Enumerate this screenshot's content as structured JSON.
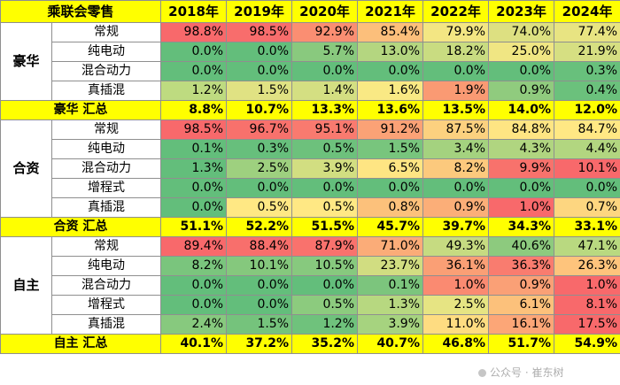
{
  "title": "乘联会零售",
  "years": [
    "2018年",
    "2019年",
    "2020年",
    "2021年",
    "2022年",
    "2023年",
    "2024年"
  ],
  "colors": {
    "highlight": "#ffff00",
    "border": "#8f8f8f"
  },
  "groups": [
    {
      "name": "豪华",
      "rows": [
        {
          "label": "常规",
          "values": [
            "98.8%",
            "98.5%",
            "92.9%",
            "85.4%",
            "79.9%",
            "74.0%",
            "77.4%"
          ]
        },
        {
          "label": "纯电动",
          "values": [
            "0.0%",
            "0.0%",
            "5.7%",
            "13.0%",
            "18.2%",
            "25.0%",
            "21.9%"
          ]
        },
        {
          "label": "混合动力",
          "values": [
            "0.0%",
            "0.0%",
            "0.0%",
            "0.0%",
            "0.0%",
            "0.0%",
            "0.3%"
          ]
        },
        {
          "label": "真插混",
          "values": [
            "1.2%",
            "1.5%",
            "1.4%",
            "1.6%",
            "1.9%",
            "0.9%",
            "0.4%"
          ]
        }
      ],
      "summary_label": "豪华 汇总",
      "summary": [
        "8.8%",
        "10.7%",
        "13.3%",
        "13.6%",
        "13.5%",
        "14.0%",
        "12.0%"
      ]
    },
    {
      "name": "合资",
      "rows": [
        {
          "label": "常规",
          "values": [
            "98.5%",
            "96.7%",
            "95.1%",
            "91.2%",
            "87.5%",
            "84.8%",
            "84.7%"
          ]
        },
        {
          "label": "纯电动",
          "values": [
            "0.1%",
            "0.3%",
            "0.5%",
            "1.5%",
            "3.4%",
            "4.3%",
            "4.4%"
          ]
        },
        {
          "label": "混合动力",
          "values": [
            "1.3%",
            "2.5%",
            "3.9%",
            "6.5%",
            "8.2%",
            "9.9%",
            "10.1%"
          ]
        },
        {
          "label": "增程式",
          "values": [
            "0.0%",
            "0.0%",
            "0.0%",
            "0.0%",
            "0.0%",
            "0.0%",
            "0.0%"
          ]
        },
        {
          "label": "真插混",
          "values": [
            "0.0%",
            "0.5%",
            "0.5%",
            "0.8%",
            "0.9%",
            "1.0%",
            "0.7%"
          ]
        }
      ],
      "summary_label": "合资 汇总",
      "summary": [
        "51.1%",
        "52.2%",
        "51.5%",
        "45.7%",
        "39.7%",
        "34.3%",
        "33.1%"
      ]
    },
    {
      "name": "自主",
      "rows": [
        {
          "label": "常规",
          "values": [
            "89.4%",
            "88.4%",
            "87.9%",
            "71.0%",
            "49.3%",
            "40.6%",
            "47.1%"
          ]
        },
        {
          "label": "纯电动",
          "values": [
            "8.2%",
            "10.1%",
            "10.5%",
            "23.7%",
            "36.1%",
            "36.3%",
            "26.3%"
          ]
        },
        {
          "label": "混合动力",
          "values": [
            "0.0%",
            "0.0%",
            "0.0%",
            "0.1%",
            "1.0%",
            "0.9%",
            "1.0%"
          ]
        },
        {
          "label": "增程式",
          "values": [
            "0.0%",
            "0.0%",
            "0.5%",
            "1.3%",
            "2.5%",
            "6.1%",
            "8.1%"
          ]
        },
        {
          "label": "真插混",
          "values": [
            "2.4%",
            "1.5%",
            "1.2%",
            "3.9%",
            "11.0%",
            "16.1%",
            "17.5%"
          ]
        }
      ],
      "summary_label": "自主 汇总",
      "summary": [
        "40.1%",
        "37.2%",
        "35.2%",
        "40.7%",
        "46.8%",
        "51.7%",
        "54.9%"
      ]
    }
  ],
  "cell_colors": [
    [
      "#f8696b",
      "#f86d6c",
      "#fa8e72",
      "#fcbf7b",
      "#f3e683",
      "#dde081",
      "#e8e482"
    ],
    [
      "#63be7b",
      "#63be7b",
      "#89c97e",
      "#b4d680",
      "#c9dc81",
      "#f0e683",
      "#d6df82"
    ],
    [
      "#63be7b",
      "#63be7b",
      "#63be7b",
      "#63be7b",
      "#63be7b",
      "#63be7b",
      "#68c07c"
    ],
    [
      "#bedb80",
      "#e0e283",
      "#d4df82",
      "#f9e984",
      "#fa9a73",
      "#90cb7e",
      "#6bc17c"
    ],
    [
      "#f8696b",
      "#f8716c",
      "#f97a6f",
      "#fba276",
      "#fcd17f",
      "#fee583",
      "#ffe884"
    ],
    [
      "#63be7b",
      "#67bf7c",
      "#6dc17c",
      "#78c57d",
      "#a4d27f",
      "#b0d580",
      "#b2d680"
    ],
    [
      "#63be7b",
      "#9ed07f",
      "#d2de81",
      "#fee583",
      "#fcc97d",
      "#f8726c",
      "#f8696b"
    ],
    [
      "#63be7b",
      "#63be7b",
      "#63be7b",
      "#63be7b",
      "#63be7b",
      "#63be7b",
      "#63be7b"
    ],
    [
      "#63be7b",
      "#ffe884",
      "#ffe884",
      "#fcc17b",
      "#fbae78",
      "#f8696b",
      "#fdd680"
    ],
    [
      "#f8696b",
      "#f86f6c",
      "#f9726d",
      "#fbac78",
      "#c6db81",
      "#8dca7e",
      "#b9d980"
    ],
    [
      "#7ac57d",
      "#85c87d",
      "#87c97e",
      "#d1dd81",
      "#fa9f75",
      "#f97c6f",
      "#fec47c"
    ],
    [
      "#63be7b",
      "#63be7b",
      "#63be7b",
      "#7cc57d",
      "#fa8a71",
      "#faa076",
      "#f8696b"
    ],
    [
      "#63be7b",
      "#63be7b",
      "#8ccb7e",
      "#b7d880",
      "#e6e483",
      "#fcc17b",
      "#f8696b"
    ],
    [
      "#87c97e",
      "#75c37c",
      "#6fc27c",
      "#a6d37f",
      "#fedc81",
      "#fca677",
      "#f8696b"
    ]
  ]
}
